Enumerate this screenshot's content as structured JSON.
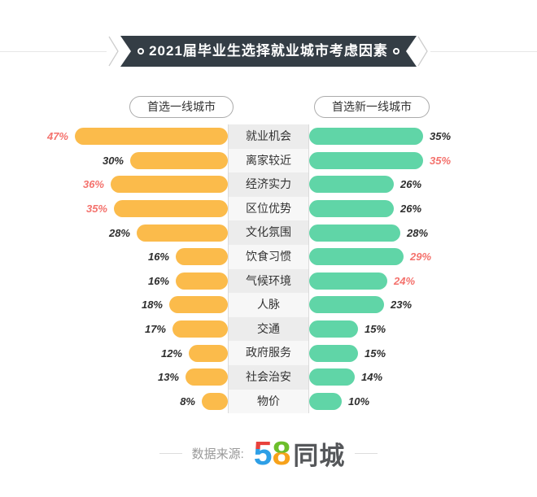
{
  "title": "2021届毕业生选择就业城市考虑因素",
  "legend": {
    "left": "首选一线城市",
    "right": "首选新一线城市"
  },
  "source": {
    "prefix": "数据来源:",
    "logo_5": "5",
    "logo_8": "8",
    "logo_suffix": "同城"
  },
  "colors": {
    "left_bar": "#FBBB4B",
    "right_bar": "#60D5A7",
    "highlight_value": "#F4726D",
    "value_text": "#2D2D2D",
    "ribbon_bg": "#343D45",
    "logo_red": "#E8413C",
    "logo_blue": "#2E9FE6",
    "logo_green": "#6CBE2B",
    "logo_orange": "#F7A21B"
  },
  "chart_data": {
    "type": "bar",
    "orientation": "horizontal-diverging",
    "title": "2021届毕业生选择就业城市考虑因素",
    "categories": [
      "就业机会",
      "离家较近",
      "经济实力",
      "区位优势",
      "文化氛围",
      "饮食习惯",
      "气候环境",
      "人脉",
      "交通",
      "政府服务",
      "社会治安",
      "物价"
    ],
    "series": [
      {
        "name": "首选一线城市",
        "side": "left",
        "color": "#FBBB4B",
        "values": [
          47,
          30,
          36,
          35,
          28,
          16,
          16,
          18,
          17,
          12,
          13,
          8
        ],
        "highlight_indices": [
          0,
          2,
          3
        ]
      },
      {
        "name": "首选新一线城市",
        "side": "right",
        "color": "#60D5A7",
        "values": [
          35,
          35,
          26,
          26,
          28,
          29,
          24,
          23,
          15,
          15,
          14,
          10
        ],
        "highlight_indices": [
          1,
          5,
          6
        ]
      }
    ],
    "value_suffix": "%",
    "xlim_percent": [
      0,
      50
    ],
    "legend_position": "top",
    "grid": false
  }
}
